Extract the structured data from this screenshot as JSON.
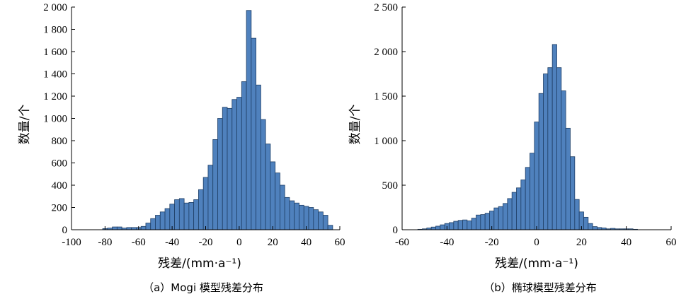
{
  "chart_data": [
    {
      "type": "bar",
      "caption": "（a）Mogi 模型残差分布",
      "xlabel": "残差/(mm·a⁻¹)",
      "ylabel": "数量/个",
      "xlim": [
        -100,
        60
      ],
      "ylim": [
        0,
        2000
      ],
      "xticks": [
        -100,
        -80,
        -60,
        -40,
        -20,
        0,
        20,
        40,
        60
      ],
      "yticks": [
        0,
        200,
        400,
        600,
        800,
        1000,
        1200,
        1400,
        1600,
        1800,
        2000
      ],
      "ytick_labels": [
        "0",
        "200",
        "400",
        "600",
        "800",
        "1 000",
        "1 200",
        "1 400",
        "1 600",
        "1 800",
        "2 000"
      ],
      "bin_width": 2.857,
      "bin_start": -81.4,
      "values": [
        10,
        15,
        25,
        25,
        15,
        20,
        20,
        20,
        30,
        60,
        100,
        130,
        160,
        190,
        230,
        270,
        280,
        240,
        245,
        270,
        360,
        470,
        580,
        810,
        1000,
        1100,
        1090,
        1170,
        1190,
        1330,
        1970,
        1720,
        1300,
        990,
        770,
        610,
        510,
        400,
        290,
        260,
        240,
        220,
        210,
        200,
        180,
        160,
        130,
        40
      ]
    },
    {
      "type": "bar",
      "caption": "（b）椭球模型残差分布",
      "xlabel": "残差/(mm·a⁻¹)",
      "ylabel": "数量/个",
      "xlim": [
        -60,
        60
      ],
      "ylim": [
        0,
        2500
      ],
      "xticks": [
        -60,
        -40,
        -20,
        0,
        20,
        40,
        60
      ],
      "yticks": [
        0,
        500,
        1000,
        1500,
        2000,
        2500
      ],
      "ytick_labels": [
        "0",
        "500",
        "1 000",
        "1 500",
        "2 000",
        "2 500"
      ],
      "bin_width": 2.0,
      "bin_start": -53.0,
      "values": [
        5,
        10,
        20,
        30,
        40,
        55,
        70,
        80,
        95,
        105,
        110,
        100,
        130,
        165,
        170,
        185,
        210,
        245,
        260,
        295,
        350,
        420,
        470,
        560,
        700,
        860,
        1210,
        1530,
        1750,
        1820,
        2080,
        1820,
        1560,
        1140,
        820,
        340,
        200,
        140,
        70,
        35,
        25,
        20,
        10,
        15,
        10,
        10,
        10,
        10,
        5
      ]
    }
  ]
}
